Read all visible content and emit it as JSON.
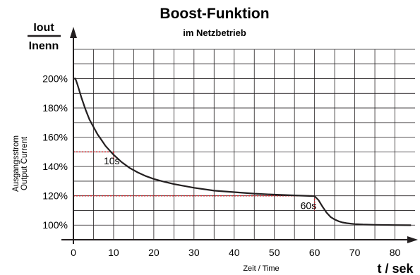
{
  "chart_data": {
    "type": "line",
    "title": "Boost-Funktion",
    "subtitle": "im Netzbetrieb",
    "ratio_label": {
      "numerator": "Iout",
      "denominator": "Inenn"
    },
    "ylabel_lines": [
      "Ausgangsstrom",
      "Output Current"
    ],
    "xlabel": "Zeit / Time",
    "xunit": "t / sek",
    "xlim": [
      0,
      85
    ],
    "ylim": [
      90,
      220
    ],
    "x_ticks": [
      0,
      10,
      20,
      30,
      40,
      50,
      60,
      70,
      80
    ],
    "x_tick_labels": [
      "0",
      "10",
      "20",
      "30",
      "40",
      "50",
      "60",
      "70",
      "80"
    ],
    "y_ticks": [
      100,
      120,
      140,
      160,
      180,
      200
    ],
    "y_tick_labels": [
      "100%",
      "120%",
      "140%",
      "160%",
      "180%",
      "200%"
    ],
    "grid": true,
    "series": [
      {
        "x": [
          0,
          0.5,
          1,
          2,
          3,
          4,
          5,
          6,
          7,
          8,
          9,
          10,
          12,
          14,
          16,
          18,
          20,
          22,
          25,
          28,
          30,
          35,
          40,
          45,
          50,
          55,
          60,
          61,
          62,
          63,
          64,
          65,
          66,
          67,
          68,
          70,
          72,
          75,
          80,
          84
        ],
        "y": [
          200,
          200,
          196,
          187,
          179,
          172,
          167,
          162,
          158,
          154,
          151,
          148,
          143,
          139,
          136,
          133.5,
          131.5,
          130,
          128,
          126.5,
          125.5,
          123.5,
          122.5,
          121.5,
          120.8,
          120.3,
          119.8,
          117,
          112.5,
          108.5,
          105.5,
          103.8,
          102.6,
          101.8,
          101.3,
          100.7,
          100.4,
          100.2,
          100,
          99.9
        ]
      }
    ],
    "markers": [
      {
        "x": 10,
        "y": 150,
        "label": "10s"
      },
      {
        "x": 60,
        "y": 120,
        "label": "60s"
      }
    ],
    "colors": {
      "curve": "#231f20",
      "axis": "#231f20",
      "grid": "#231f20",
      "marker": "#d2232a"
    }
  }
}
